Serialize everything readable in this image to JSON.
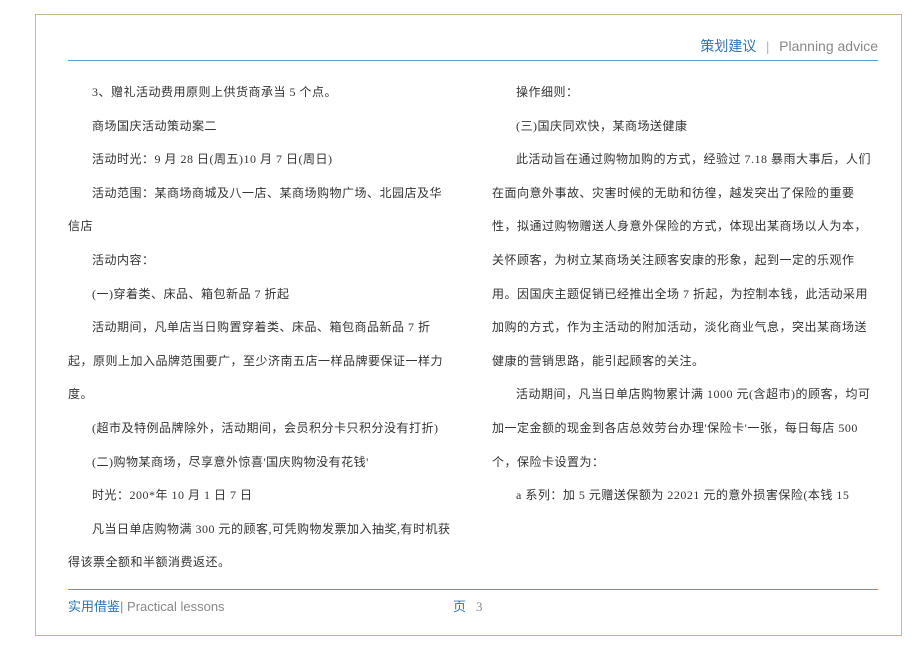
{
  "header": {
    "title_cn": "策划建议",
    "separator": "|",
    "title_en": "Planning  advice"
  },
  "body": {
    "paragraphs": [
      "3、赠礼活动费用原则上供货商承当 5 个点。",
      "商场国庆活动策动案二",
      "活动时光：9 月 28 日(周五)10 月 7 日(周日)",
      "活动范围：某商场商城及八一店、某商场购物广场、北园店及华信店",
      "活动内容：",
      "(一)穿着类、床品、箱包新品 7 折起",
      "活动期间，凡单店当日购置穿着类、床品、箱包商品新品 7 折起，原则上加入品牌范围要广，至少济南五店一样品牌要保证一样力度。",
      "(超市及特例品牌除外，活动期间，会员积分卡只积分没有打折)",
      "(二)购物某商场，尽享意外惊喜'国庆购物没有花钱'",
      "时光：200*年 10 月 1 日 7 日",
      "凡当日单店购物满 300 元的顾客,可凭购物发票加入抽奖,有时机获得该票全额和半额消费返还。",
      "操作细则：",
      "(三)国庆同欢快，某商场送健康",
      "此活动旨在通过购物加购的方式，经验过 7.18 暴雨大事后，人们在面向意外事故、灾害时候的无助和彷徨，越发突出了保险的重要性，拟通过购物赠送人身意外保险的方式，体现出某商场以人为本，关怀顾客，为树立某商场关注顾客安康的形象，起到一定的乐观作用。因国庆主题促销已经推出全场 7 折起，为控制本钱，此活动采用加购的方式，作为主活动的附加活动，淡化商业气息，突出某商场送健康的营销思路，能引起顾客的关注。",
      "活动期间，凡当日单店购物累计满 1000 元(含超市)的顾客，均可加一定金额的现金到各店总效劳台办理'保险卡'一张，每日每店 500 个，保险卡设置为：",
      "a 系列：加 5 元赠送保额为 22021 元的意外损害保险(本钱 15"
    ]
  },
  "footer": {
    "label_cn": "实用借鉴",
    "separator": "|",
    "label_en": " Practical lessons",
    "page_label": "页",
    "page_number": "3"
  }
}
